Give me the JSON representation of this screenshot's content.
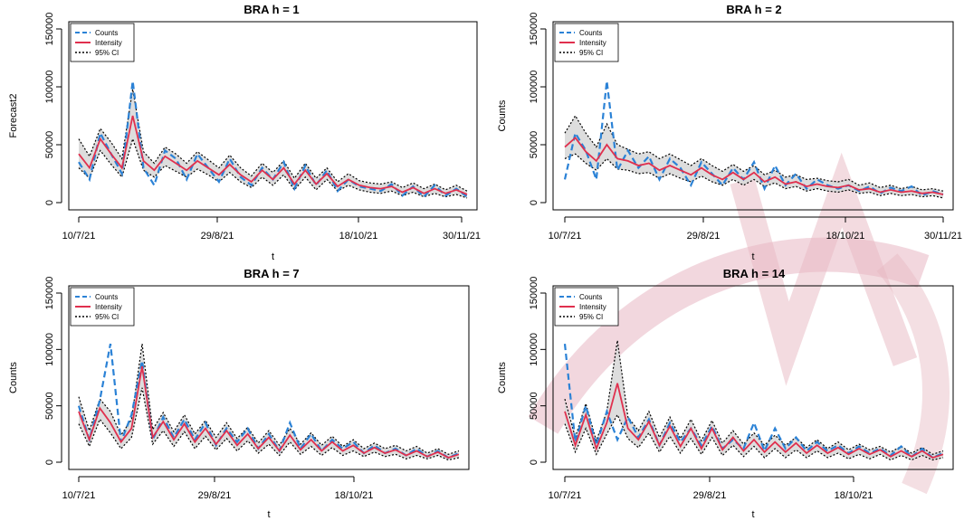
{
  "colors": {
    "counts": "#2b82d6",
    "intensity": "#e0304e",
    "ci": "#000000",
    "ci_fill": "#d9d9d9",
    "watermark": "#e7b7c2"
  },
  "chart_data": [
    {
      "type": "line",
      "title": "BRA  h = 1",
      "xlabel": "t",
      "ylabel": "Forecast2",
      "xticks": [
        "10/7/21",
        "29/8/21",
        "18/10/21",
        "30/11/21"
      ],
      "yticks": [
        "0",
        "50000",
        "100000",
        "150000"
      ],
      "ylim": [
        0,
        150000
      ],
      "legend": [
        "Counts",
        "Intensity",
        "95% CI"
      ],
      "x": [
        0,
        4,
        8,
        12,
        16,
        20,
        24,
        28,
        32,
        36,
        40,
        44,
        48,
        52,
        56,
        60,
        64,
        68,
        72,
        76,
        80,
        84,
        88,
        92,
        96,
        100,
        104,
        108,
        112,
        116,
        120,
        124,
        128,
        132,
        136,
        140,
        144
      ],
      "series": [
        {
          "name": "Counts",
          "values": [
            35000,
            20000,
            60000,
            42000,
            25000,
            105000,
            30000,
            15000,
            45000,
            38000,
            20000,
            42000,
            30000,
            18000,
            38000,
            22000,
            15000,
            30000,
            20000,
            35000,
            12000,
            32000,
            15000,
            28000,
            10000,
            20000,
            14000,
            12000,
            10000,
            16000,
            6000,
            14000,
            5000,
            15000,
            6000,
            12000,
            5000
          ]
        },
        {
          "name": "Intensity",
          "values": [
            42000,
            30000,
            55000,
            42000,
            30000,
            75000,
            36000,
            28000,
            40000,
            34000,
            28000,
            36000,
            30000,
            24000,
            33000,
            24000,
            18000,
            28000,
            20000,
            30000,
            16000,
            28000,
            16000,
            25000,
            14000,
            20000,
            15000,
            13000,
            12000,
            14000,
            9000,
            13000,
            8000,
            12000,
            8000,
            11000,
            7000
          ]
        },
        {
          "name": "95% CI",
          "values": [
            55000,
            40000,
            64000,
            52000,
            38000,
            98000,
            44000,
            34000,
            48000,
            42000,
            34000,
            44000,
            37000,
            30000,
            41000,
            30000,
            23000,
            34000,
            26000,
            36000,
            21000,
            34000,
            21000,
            30000,
            18000,
            25000,
            19000,
            17000,
            16000,
            18000,
            13000,
            17000,
            12000,
            16000,
            11000,
            15000,
            10000
          ]
        },
        {
          "name": "95% CI lower",
          "values": [
            30000,
            21000,
            45000,
            33000,
            22000,
            55000,
            28000,
            22000,
            32000,
            27000,
            22000,
            29000,
            24000,
            18000,
            26000,
            18000,
            13000,
            22000,
            15000,
            24000,
            11000,
            22000,
            11000,
            20000,
            10000,
            15000,
            11000,
            9000,
            8000,
            10000,
            6000,
            9000,
            5000,
            8000,
            5000,
            7000,
            4000
          ]
        }
      ]
    },
    {
      "type": "line",
      "title": "BRA  h = 2",
      "xlabel": "t",
      "ylabel": "Counts",
      "xticks": [
        "10/7/21",
        "29/8/21",
        "18/10/21",
        "30/11/21"
      ],
      "yticks": [
        "0",
        "50000",
        "100000",
        "150000"
      ],
      "ylim": [
        0,
        150000
      ],
      "legend": [
        "Counts",
        "Intensity",
        "95% CI"
      ],
      "x": [
        0,
        4,
        8,
        12,
        16,
        20,
        24,
        28,
        32,
        36,
        40,
        44,
        48,
        52,
        56,
        60,
        64,
        68,
        72,
        76,
        80,
        84,
        88,
        92,
        96,
        100,
        104,
        108,
        112,
        116,
        120,
        124,
        128,
        132,
        136,
        140,
        144
      ],
      "series": [
        {
          "name": "Counts",
          "values": [
            20000,
            60000,
            45000,
            20000,
            105000,
            28000,
            45000,
            30000,
            40000,
            20000,
            38000,
            30000,
            15000,
            35000,
            25000,
            15000,
            30000,
            20000,
            35000,
            12000,
            32000,
            15000,
            25000,
            12000,
            20000,
            15000,
            12000,
            15000,
            10000,
            14000,
            8000,
            13000,
            10000,
            14000,
            6000,
            10000,
            7000
          ]
        },
        {
          "name": "Intensity",
          "values": [
            48000,
            56000,
            44000,
            36000,
            50000,
            38000,
            36000,
            32000,
            34000,
            28000,
            32000,
            28000,
            24000,
            30000,
            24000,
            20000,
            26000,
            20000,
            26000,
            18000,
            22000,
            16000,
            18000,
            14000,
            16000,
            14000,
            13000,
            15000,
            11000,
            12000,
            9000,
            11000,
            9000,
            10000,
            8000,
            9000,
            7000
          ]
        },
        {
          "name": "95% CI",
          "values": [
            60000,
            75000,
            60000,
            48000,
            68000,
            50000,
            46000,
            42000,
            44000,
            38000,
            42000,
            37000,
            32000,
            38000,
            32000,
            27000,
            33000,
            27000,
            32000,
            24000,
            28000,
            22000,
            24000,
            20000,
            21000,
            19000,
            18000,
            20000,
            15000,
            17000,
            13000,
            15000,
            12000,
            14000,
            11000,
            12000,
            10000
          ]
        },
        {
          "name": "95% CI lower",
          "values": [
            38000,
            42000,
            34000,
            28000,
            38000,
            29000,
            28000,
            25000,
            26000,
            21000,
            25000,
            21000,
            18000,
            23000,
            18000,
            15000,
            20000,
            15000,
            20000,
            14000,
            17000,
            12000,
            14000,
            10000,
            12000,
            10000,
            9000,
            11000,
            8000,
            9000,
            6000,
            8000,
            6000,
            7000,
            5000,
            6000,
            4000
          ]
        }
      ]
    },
    {
      "type": "line",
      "title": "BRA  h = 7",
      "xlabel": "t",
      "ylabel": "Counts",
      "xticks": [
        "10/7/21",
        "29/8/21",
        "18/10/21"
      ],
      "yticks": [
        "0",
        "50000",
        "100000",
        "150000"
      ],
      "ylim": [
        0,
        150000
      ],
      "legend": [
        "Counts",
        "Intensity",
        "95% CI"
      ],
      "x": [
        0,
        4,
        8,
        12,
        16,
        20,
        24,
        28,
        32,
        36,
        40,
        44,
        48,
        52,
        56,
        60,
        64,
        68,
        72,
        76,
        80,
        84,
        88,
        92,
        96,
        100,
        104,
        108,
        112,
        116,
        120,
        124,
        128,
        132,
        136,
        140,
        144
      ],
      "series": [
        {
          "name": "Counts",
          "values": [
            50000,
            20000,
            55000,
            105000,
            18000,
            42000,
            90000,
            20000,
            40000,
            22000,
            38000,
            20000,
            35000,
            15000,
            30000,
            18000,
            30000,
            12000,
            25000,
            10000,
            35000,
            12000,
            25000,
            10000,
            20000,
            12000,
            18000,
            8000,
            15000,
            8000,
            12000,
            6000,
            12000,
            5000,
            10000,
            4000,
            8000
          ]
        },
        {
          "name": "Intensity",
          "values": [
            45000,
            20000,
            48000,
            35000,
            18000,
            30000,
            85000,
            22000,
            36000,
            20000,
            34000,
            18000,
            30000,
            16000,
            28000,
            15000,
            25000,
            12000,
            22000,
            10000,
            24000,
            11000,
            20000,
            10000,
            18000,
            10000,
            15000,
            8000,
            13000,
            8000,
            11000,
            6000,
            10000,
            5000,
            9000,
            4000,
            7000
          ]
        },
        {
          "name": "95% CI",
          "values": [
            58000,
            28000,
            56000,
            45000,
            24000,
            38000,
            105000,
            29000,
            44000,
            27000,
            42000,
            25000,
            37000,
            22000,
            35000,
            21000,
            31000,
            17000,
            28000,
            15000,
            30000,
            16000,
            26000,
            15000,
            23000,
            14000,
            20000,
            12000,
            17000,
            12000,
            15000,
            10000,
            14000,
            8000,
            12000,
            7000,
            10000
          ]
        },
        {
          "name": "95% CI lower",
          "values": [
            34000,
            14000,
            38000,
            26000,
            12000,
            22000,
            66000,
            16000,
            28000,
            14000,
            27000,
            12000,
            23000,
            11000,
            21000,
            10000,
            19000,
            8000,
            16000,
            6000,
            18000,
            7000,
            14000,
            6000,
            13000,
            6000,
            10000,
            5000,
            9000,
            5000,
            7000,
            3000,
            6000,
            3000,
            6000,
            2000,
            4000
          ]
        }
      ]
    },
    {
      "type": "line",
      "title": "BRA  h = 14",
      "xlabel": "t",
      "ylabel": "Counts",
      "xticks": [
        "10/7/21",
        "29/8/21",
        "18/10/21"
      ],
      "yticks": [
        "0",
        "50000",
        "100000",
        "150000"
      ],
      "ylim": [
        0,
        150000
      ],
      "legend": [
        "Counts",
        "Intensity",
        "95% CI"
      ],
      "x": [
        0,
        4,
        8,
        12,
        16,
        20,
        24,
        28,
        32,
        36,
        40,
        44,
        48,
        52,
        56,
        60,
        64,
        68,
        72,
        76,
        80,
        84,
        88,
        92,
        96,
        100,
        104,
        108,
        112,
        116,
        120,
        124,
        128,
        132,
        136,
        140,
        144
      ],
      "series": [
        {
          "name": "Counts",
          "values": [
            105000,
            18000,
            50000,
            15000,
            45000,
            20000,
            40000,
            22000,
            38000,
            15000,
            35000,
            18000,
            30000,
            15000,
            32000,
            12000,
            20000,
            12000,
            35000,
            10000,
            30000,
            12000,
            22000,
            10000,
            18000,
            10000,
            15000,
            8000,
            14000,
            8000,
            12000,
            6000,
            14000,
            5000,
            12000,
            4000,
            8000
          ]
        },
        {
          "name": "Intensity",
          "values": [
            45000,
            15000,
            42000,
            12000,
            35000,
            70000,
            30000,
            20000,
            36000,
            15000,
            32000,
            14000,
            30000,
            12000,
            30000,
            11000,
            22000,
            10000,
            20000,
            9000,
            18000,
            9000,
            17000,
            8000,
            15000,
            8000,
            13000,
            7000,
            12000,
            7000,
            11000,
            5000,
            10000,
            5000,
            10000,
            4000,
            7000
          ]
        },
        {
          "name": "95% CI",
          "values": [
            56000,
            22000,
            52000,
            19000,
            45000,
            108000,
            40000,
            28000,
            45000,
            22000,
            40000,
            21000,
            38000,
            19000,
            37000,
            17000,
            28000,
            16000,
            26000,
            15000,
            24000,
            15000,
            22000,
            13000,
            20000,
            12000,
            18000,
            11000,
            16000,
            11000,
            14000,
            9000,
            14000,
            8000,
            13000,
            7000,
            10000
          ]
        },
        {
          "name": "95% CI lower",
          "values": [
            34000,
            9000,
            30000,
            7000,
            25000,
            42000,
            21000,
            13000,
            26000,
            9000,
            23000,
            8000,
            21000,
            7000,
            22000,
            6000,
            15000,
            5000,
            14000,
            4000,
            12000,
            4000,
            11000,
            4000,
            10000,
            4000,
            8000,
            3000,
            7000,
            3000,
            7000,
            2000,
            6000,
            2000,
            6000,
            2000,
            4000
          ]
        }
      ]
    }
  ]
}
